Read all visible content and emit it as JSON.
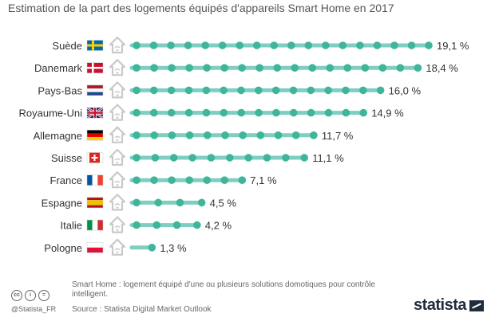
{
  "header": {
    "subtitle": "Estimation de la part des logements équipés d'appareils Smart Home en 2017"
  },
  "colors": {
    "bar": "#7fcfc0",
    "dot": "#3fb59b",
    "house": "#c9c9c9"
  },
  "chart_data": {
    "type": "bar",
    "orientation": "horizontal",
    "categories": [
      "Suède",
      "Danemark",
      "Pays-Bas",
      "Royaume-Uni",
      "Allemagne",
      "Suisse",
      "France",
      "Espagne",
      "Italie",
      "Pologne"
    ],
    "values": [
      19.1,
      18.4,
      16.0,
      14.9,
      11.7,
      11.1,
      7.1,
      4.5,
      4.2,
      1.3
    ],
    "value_labels": [
      "19,1 %",
      "18,4 %",
      "16,0 %",
      "14,9 %",
      "11,7 %",
      "11,1 %",
      "7,1 %",
      "4,5 %",
      "4,2 %",
      "1,3 %"
    ],
    "flags": [
      "se",
      "dk",
      "nl",
      "gb",
      "de",
      "ch",
      "fr",
      "es",
      "it",
      "pl"
    ],
    "xlim": [
      0,
      19.1
    ]
  },
  "footer": {
    "note": "Smart Home : logement équipé d'une ou plusieurs solutions domotiques pour contrôle intelligent.",
    "source": "Source : Statista Digital Market Outlook",
    "handle": "@Statista_FR",
    "brand": "statista"
  }
}
